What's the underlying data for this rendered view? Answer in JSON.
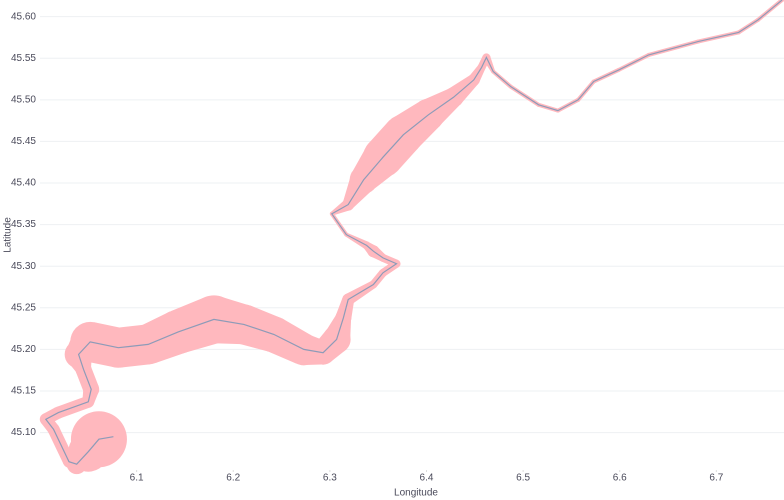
{
  "chart_data": {
    "type": "path",
    "x_label": "Longitude",
    "y_label": "Latitude",
    "x": [
      6.076,
      6.061,
      6.05,
      6.038,
      6.03,
      6.014,
      6.006,
      6.019,
      6.05,
      6.053,
      6.045,
      6.04,
      6.052,
      6.081,
      6.112,
      6.143,
      6.18,
      6.211,
      6.242,
      6.273,
      6.293,
      6.307,
      6.314,
      6.319,
      6.345,
      6.355,
      6.369,
      6.355,
      6.345,
      6.338,
      6.317,
      6.302,
      6.319,
      6.335,
      6.355,
      6.376,
      6.402,
      6.428,
      6.449,
      6.457,
      6.462,
      6.469,
      6.487,
      6.516,
      6.536,
      6.557,
      6.573,
      6.599,
      6.63,
      6.681,
      6.723,
      6.743,
      6.768
    ],
    "y": [
      45.095,
      45.092,
      45.077,
      45.062,
      45.065,
      45.104,
      45.116,
      45.124,
      45.137,
      45.152,
      45.176,
      45.194,
      45.209,
      45.202,
      45.206,
      45.221,
      45.236,
      45.23,
      45.218,
      45.2,
      45.196,
      45.212,
      45.238,
      45.26,
      45.278,
      45.292,
      45.303,
      45.31,
      45.318,
      45.325,
      45.338,
      45.363,
      45.374,
      45.404,
      45.431,
      45.458,
      45.482,
      45.503,
      45.524,
      45.539,
      45.551,
      45.534,
      45.516,
      45.494,
      45.487,
      45.5,
      45.522,
      45.536,
      45.554,
      45.57,
      45.581,
      45.596,
      45.62
    ],
    "size": [
      10,
      28,
      20,
      10,
      6,
      6,
      6,
      6,
      6,
      8,
      8,
      14,
      20,
      20,
      20,
      22,
      24,
      20,
      18,
      16,
      12,
      14,
      8,
      6,
      4,
      4,
      4,
      4,
      6,
      4,
      2,
      2,
      6,
      14,
      20,
      20,
      16,
      10,
      6,
      4,
      4,
      2,
      2,
      2,
      2,
      2,
      2,
      2,
      2,
      2,
      2,
      2,
      2
    ],
    "line_color": "#8d9bb8",
    "buffer_color": "#ffb8be",
    "xlim": [
      6.0,
      6.77
    ],
    "ylim": [
      45.055,
      45.62
    ],
    "xticks": [
      6.1,
      6.2,
      6.3,
      6.4,
      6.5,
      6.6,
      6.7
    ],
    "yticks": [
      {
        "value": 45.1,
        "label": "45.10"
      },
      {
        "value": 45.15,
        "label": "45.15"
      },
      {
        "value": 45.2,
        "label": "45.20"
      },
      {
        "value": 45.25,
        "label": "45.25"
      },
      {
        "value": 45.3,
        "label": "45.30"
      },
      {
        "value": 45.35,
        "label": "45.35"
      },
      {
        "value": 45.4,
        "label": "45.40"
      },
      {
        "value": 45.45,
        "label": "45.45"
      },
      {
        "value": 45.5,
        "label": "45.50"
      },
      {
        "value": 45.55,
        "label": "45.55"
      },
      {
        "value": 45.6,
        "label": "45.60"
      }
    ],
    "grid": true
  }
}
